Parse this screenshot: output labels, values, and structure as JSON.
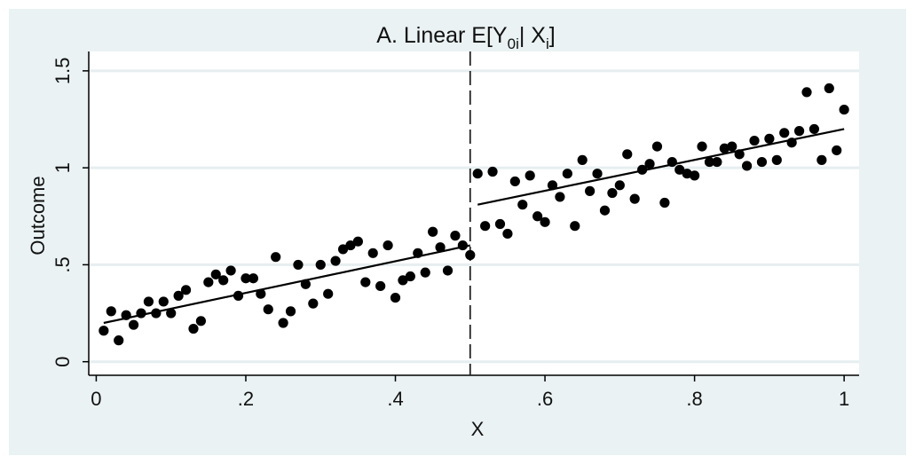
{
  "chart_data": {
    "type": "scatter",
    "title": "A. Linear E[Y",
    "title_sub": "0i",
    "title_mid": "| X",
    "title_sub2": "i",
    "title_end": "]",
    "xlabel": "X",
    "ylabel": "Outcome",
    "xlim": [
      -0.01,
      1.02
    ],
    "ylim": [
      -0.07,
      1.6
    ],
    "x_ticks": [
      0,
      0.2,
      0.4,
      0.6,
      0.8,
      1
    ],
    "x_tick_labels": [
      "0",
      ".2",
      ".4",
      ".6",
      ".8",
      "1"
    ],
    "y_ticks": [
      0,
      0.5,
      1,
      1.5
    ],
    "y_tick_labels": [
      "0",
      ".5",
      "1",
      "1.5"
    ],
    "grid": true,
    "cutoff": 0.5,
    "series": [
      {
        "type": "scatter",
        "color": "#000000",
        "x": [
          0.01,
          0.02,
          0.03,
          0.04,
          0.05,
          0.06,
          0.07,
          0.08,
          0.09,
          0.1,
          0.11,
          0.12,
          0.13,
          0.14,
          0.15,
          0.16,
          0.17,
          0.18,
          0.19,
          0.2,
          0.21,
          0.22,
          0.23,
          0.24,
          0.25,
          0.26,
          0.27,
          0.28,
          0.29,
          0.3,
          0.31,
          0.32,
          0.33,
          0.34,
          0.35,
          0.36,
          0.37,
          0.38,
          0.39,
          0.4,
          0.41,
          0.42,
          0.43,
          0.44,
          0.45,
          0.46,
          0.47,
          0.48,
          0.49,
          0.5,
          0.51,
          0.52,
          0.53,
          0.54,
          0.55,
          0.56,
          0.57,
          0.58,
          0.59,
          0.6,
          0.61,
          0.62,
          0.63,
          0.64,
          0.65,
          0.66,
          0.67,
          0.68,
          0.69,
          0.7,
          0.71,
          0.72,
          0.73,
          0.74,
          0.75,
          0.76,
          0.77,
          0.78,
          0.79,
          0.8,
          0.81,
          0.82,
          0.83,
          0.84,
          0.85,
          0.86,
          0.87,
          0.88,
          0.89,
          0.9,
          0.91,
          0.92,
          0.93,
          0.94,
          0.95,
          0.96,
          0.97,
          0.98,
          0.99,
          1.0
        ],
        "y": [
          0.16,
          0.26,
          0.11,
          0.24,
          0.19,
          0.25,
          0.31,
          0.25,
          0.31,
          0.25,
          0.34,
          0.37,
          0.17,
          0.21,
          0.41,
          0.45,
          0.42,
          0.47,
          0.34,
          0.43,
          0.43,
          0.35,
          0.27,
          0.54,
          0.2,
          0.26,
          0.5,
          0.4,
          0.3,
          0.5,
          0.35,
          0.52,
          0.58,
          0.6,
          0.62,
          0.41,
          0.56,
          0.39,
          0.6,
          0.33,
          0.42,
          0.44,
          0.56,
          0.46,
          0.67,
          0.59,
          0.47,
          0.65,
          0.6,
          0.55,
          0.97,
          0.7,
          0.98,
          0.71,
          0.66,
          0.93,
          0.81,
          0.96,
          0.75,
          0.72,
          0.91,
          0.85,
          0.97,
          0.7,
          1.04,
          0.88,
          0.97,
          0.78,
          0.87,
          0.91,
          1.07,
          0.84,
          0.99,
          1.02,
          1.11,
          0.82,
          1.03,
          0.99,
          0.97,
          0.96,
          1.11,
          1.03,
          1.03,
          1.1,
          1.11,
          1.07,
          1.01,
          1.14,
          1.03,
          1.15,
          1.04,
          1.18,
          1.13,
          1.19,
          1.39,
          1.2,
          1.04,
          1.41,
          1.09,
          1.3
        ]
      },
      {
        "type": "line",
        "segment": "left",
        "color": "#000000",
        "x": [
          0.01,
          0.5
        ],
        "y": [
          0.2,
          0.6
        ]
      },
      {
        "type": "line",
        "segment": "right",
        "color": "#000000",
        "x": [
          0.51,
          1.0
        ],
        "y": [
          0.81,
          1.2
        ]
      }
    ]
  }
}
